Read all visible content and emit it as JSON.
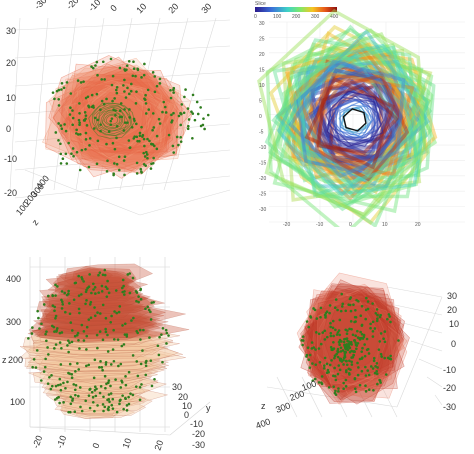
{
  "chart_data": [
    {
      "type": "scatter",
      "panel": "top-left",
      "view": "3d-top",
      "x_ticks": [
        "-30",
        "-20",
        "-10",
        "0",
        "10",
        "20",
        "30"
      ],
      "y_ticks": [
        "30",
        "20",
        "10",
        "0",
        "-10",
        "-20"
      ],
      "z_ticks": [
        "400",
        "300",
        "200",
        "100"
      ],
      "z_label": "z",
      "grid": true,
      "colors": {
        "polygon": "#e8694a",
        "polygon_light": "#f2a27e",
        "points": "#2f7d1e",
        "ring": "#2f7d1e"
      }
    },
    {
      "type": "line",
      "panel": "top-right",
      "view": "2d-projection",
      "colorbar_title": "Slice",
      "colorbar_ticks": [
        "0",
        "100",
        "200",
        "300",
        "400"
      ],
      "x_ticks": [
        "-20",
        "-10",
        "0",
        "10",
        "20"
      ],
      "y_ticks": [
        "30",
        "25",
        "20",
        "15",
        "10",
        "5",
        "0",
        "-5",
        "-10",
        "-15",
        "-20",
        "-25",
        "-30"
      ],
      "grid": true,
      "colors": {
        "low": "#2b1a8c",
        "mid": "#3fe8a0",
        "high": "#f5a623",
        "top": "#8b0e0e"
      }
    },
    {
      "type": "scatter",
      "panel": "bottom-left",
      "view": "3d-side",
      "z_ticks": [
        "400",
        "300",
        "200",
        "100"
      ],
      "z_label": "z",
      "x_ticks": [
        "-20",
        "-10",
        "0",
        "10",
        "20"
      ],
      "y_ticks": [
        "30",
        "20",
        "10",
        "0",
        "-10",
        "-20",
        "-30"
      ],
      "y_label": "y",
      "grid": true,
      "colors": {
        "polygon": "#c9523a",
        "polygon_light": "#f3c8a0",
        "points": "#2f7d1e"
      }
    },
    {
      "type": "scatter",
      "panel": "bottom-right",
      "view": "3d-oblique",
      "z_ticks": [
        "400",
        "300",
        "200",
        "100"
      ],
      "z_label": "z",
      "right_ticks": [
        "30",
        "20",
        "10",
        "0",
        "-10",
        "-20",
        "-30"
      ],
      "grid": true,
      "colors": {
        "polygon": "#c0392b",
        "polygon_light": "#e8806a",
        "points": "#2f7d1e"
      }
    }
  ]
}
